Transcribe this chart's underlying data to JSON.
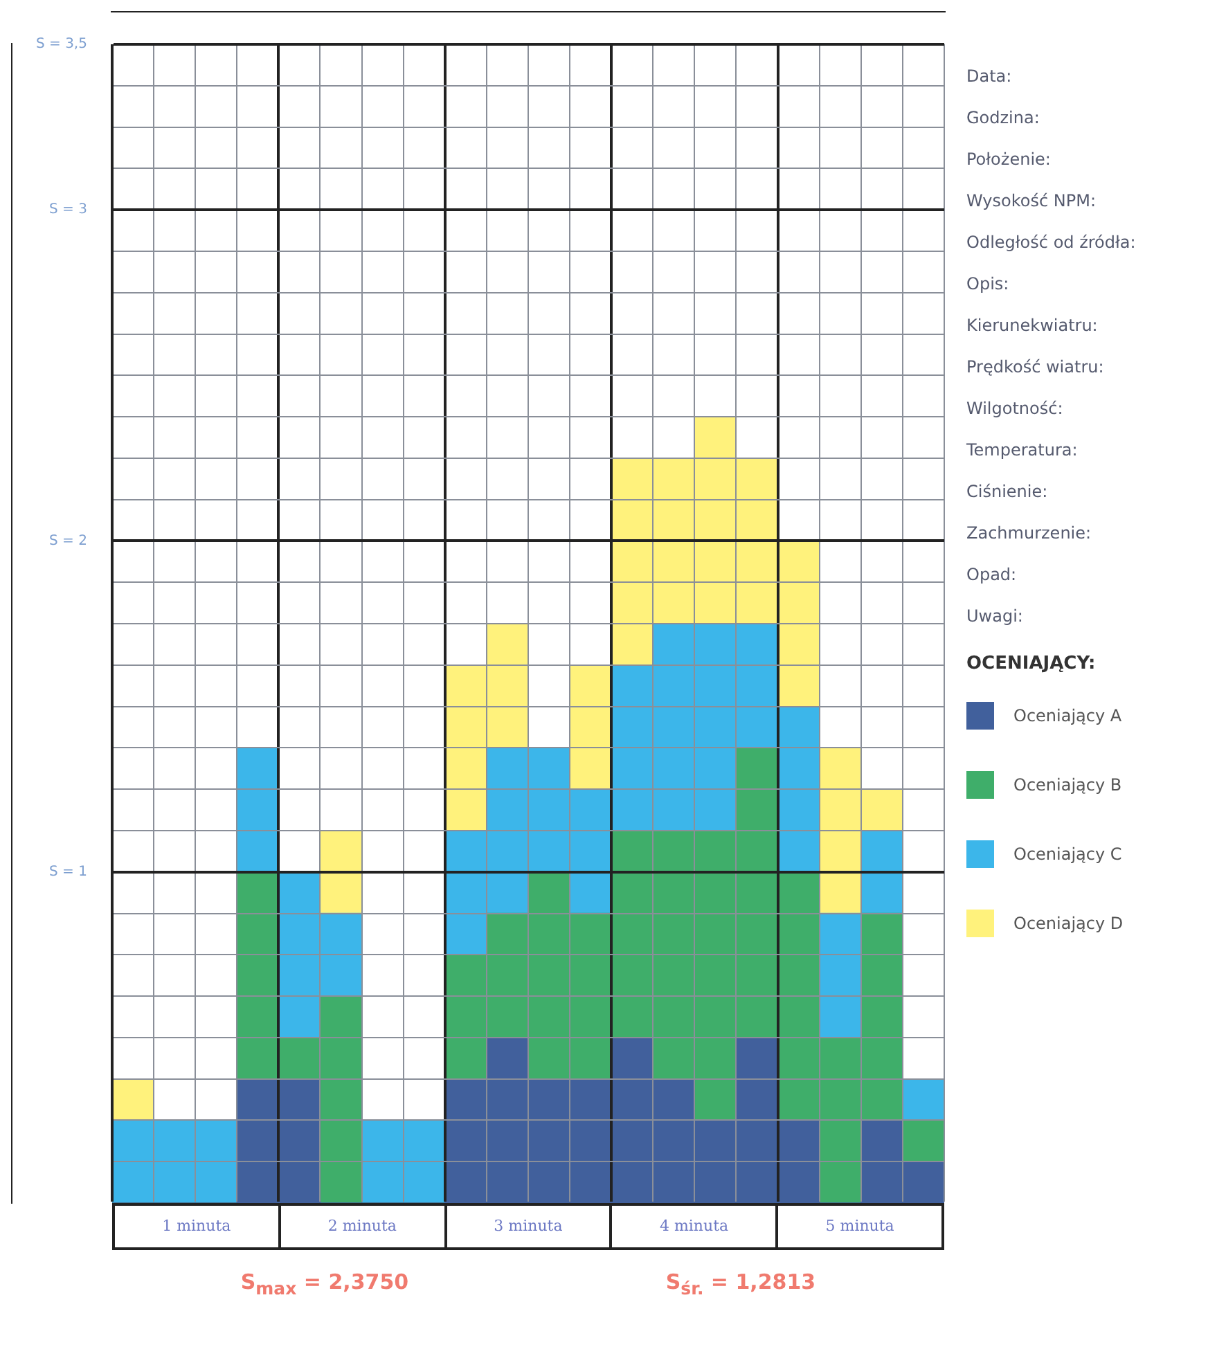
{
  "chart_data": {
    "type": "bar",
    "stacked": true,
    "categories": [
      null,
      null,
      null,
      null,
      null,
      null,
      null,
      null,
      null,
      null,
      null,
      null,
      null,
      null,
      null,
      null,
      null,
      null,
      null,
      null
    ],
    "series": [
      {
        "name": "Oceniający A",
        "color": "#41609c",
        "values": [
          0,
          0,
          0,
          0.375,
          0.375,
          0,
          0,
          0,
          0.375,
          0.5,
          0.375,
          0.375,
          0.5,
          0.375,
          0.25,
          0.5,
          0.25,
          0,
          0.25,
          0.125
        ]
      },
      {
        "name": "Oceniający B",
        "color": "#3fae6a",
        "values": [
          0,
          0,
          0,
          0.625,
          0.125,
          0.625,
          0,
          0,
          0.375,
          0.375,
          0.625,
          0.5,
          0.625,
          0.75,
          0.875,
          0.875,
          0.75,
          0.5,
          0.625,
          0.125
        ]
      },
      {
        "name": "Oceniający C",
        "color": "#3cb6ea",
        "values": [
          0.25,
          0.25,
          0.25,
          0.375,
          0.5,
          0.25,
          0.25,
          0.25,
          0.375,
          0.5,
          0.375,
          0.375,
          0.5,
          0.625,
          0.625,
          0.375,
          0.5,
          0.375,
          0.25,
          0.125
        ]
      },
      {
        "name": "Oceniający D",
        "color": "#fff27c",
        "values": [
          0.125,
          0,
          0,
          0,
          0,
          0.25,
          0,
          0,
          0.5,
          0.375,
          0,
          0.375,
          0.625,
          0.5,
          0.625,
          0.5,
          0.5,
          0.5,
          0.125,
          0
        ]
      }
    ],
    "ylim": [
      0,
      3.5
    ],
    "yticks": [
      {
        "value": 0.125,
        "label": null
      },
      {
        "value": 0.25,
        "label": null
      },
      {
        "value": 0.375,
        "label": null
      },
      {
        "value": 0.5,
        "label": null
      },
      {
        "value": 0.625,
        "label": null
      },
      {
        "value": 0.75,
        "label": null
      },
      {
        "value": 0.875,
        "label": null
      },
      {
        "value": 1,
        "label": "S = 1"
      },
      {
        "value": 1.125,
        "label": null
      },
      {
        "value": 1.25,
        "label": null
      },
      {
        "value": 1.375,
        "label": null
      },
      {
        "value": 1.5,
        "label": null
      },
      {
        "value": 1.625,
        "label": null
      },
      {
        "value": 1.75,
        "label": null
      },
      {
        "value": 1.875,
        "label": null
      },
      {
        "value": 2,
        "label": "S = 2"
      },
      {
        "value": 2.125,
        "label": null
      },
      {
        "value": 2.25,
        "label": null
      },
      {
        "value": 2.375,
        "label": null
      },
      {
        "value": 2.5,
        "label": null
      },
      {
        "value": 2.625,
        "label": null
      },
      {
        "value": 2.75,
        "label": null
      },
      {
        "value": 2.875,
        "label": null
      },
      {
        "value": 3,
        "label": "S = 3"
      },
      {
        "value": 3.125,
        "label": null
      },
      {
        "value": 3.25,
        "label": null
      },
      {
        "value": 3.375,
        "label": null
      },
      {
        "value": 3.5,
        "label": "S = 3,5"
      }
    ],
    "grid": true,
    "tick_labels": "y",
    "legend": "right",
    "legend_title": "OCENIAJĄCY:",
    "annotations": [
      "Data:",
      "Godzina:",
      "Położenie:",
      "Wysokość NPM:",
      "Odległość od źródła:",
      "Opis:",
      "Kierunekwiatru:",
      "Prędkość wiatru:",
      "Wilgotność:",
      "Temperatura:",
      "Ciśnienie:",
      "Zachmurzenie:",
      "Opad:",
      "Uwagi:",
      "1 minuta",
      "2 minuta",
      "3 minuta",
      "4 minuta",
      "5 minuta",
      "S$_{max}$ = 2,3750",
      "S$_{śr.}$ = 1,2813"
    ]
  }
}
